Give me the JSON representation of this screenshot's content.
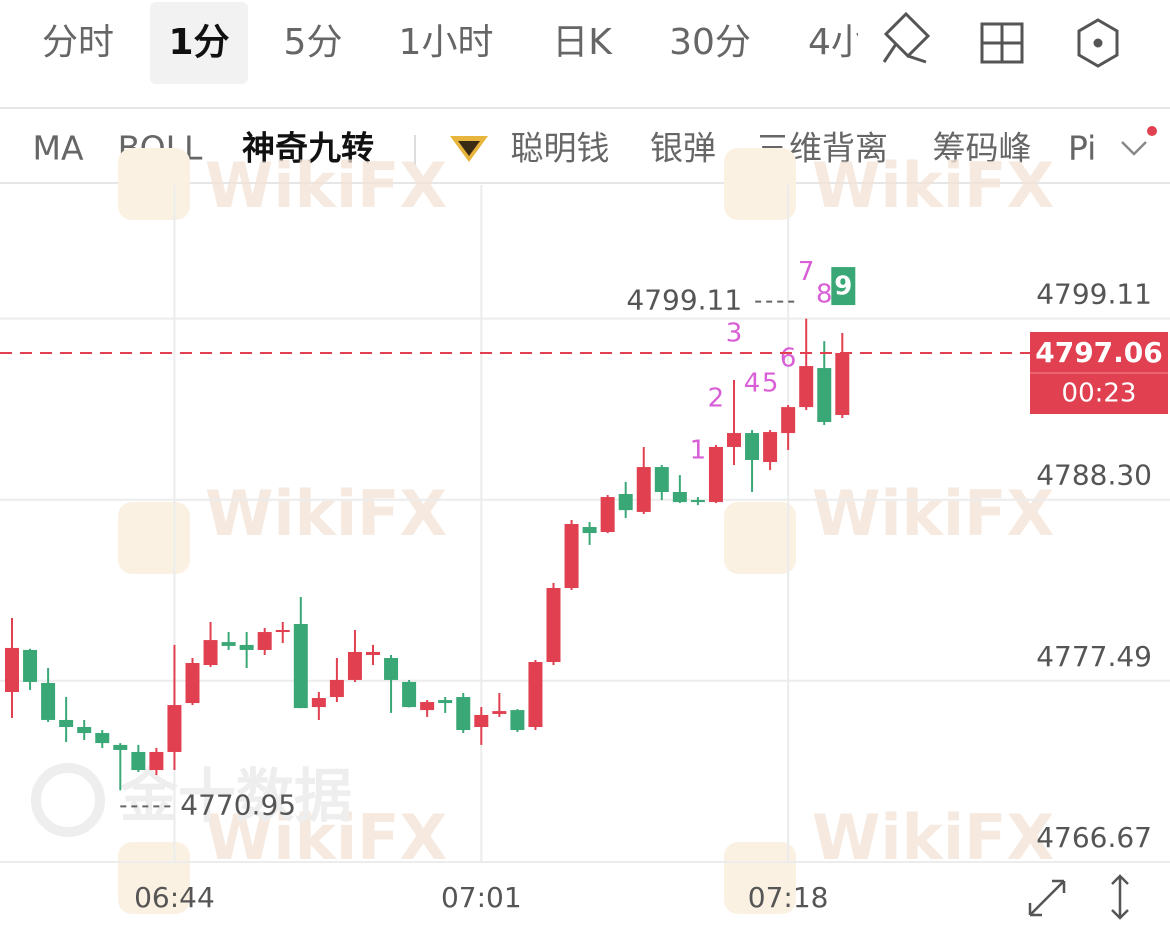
{
  "tabs": [
    "分时",
    "1分",
    "5分",
    "1小时",
    "日K",
    "30分",
    "4小"
  ],
  "indicators": [
    "MA",
    "BOLL",
    "神奇九转",
    "聪明钱",
    "银弹",
    "三维背离",
    "筹码峰",
    "Pi"
  ],
  "watermarks": [
    "WikiFX",
    "金十数据"
  ],
  "chart_data": {
    "type": "candlestick",
    "categories": [
      null,
      null,
      null,
      null,
      null,
      null,
      null,
      null,
      null,
      "06:44",
      null,
      null,
      null,
      null,
      null,
      null,
      null,
      null,
      null,
      null,
      null,
      null,
      null,
      null,
      null,
      null,
      "07:01",
      null,
      null,
      null,
      null,
      null,
      null,
      null,
      null,
      null,
      null,
      null,
      null,
      null,
      null,
      null,
      null,
      "07:18",
      null,
      null,
      null
    ],
    "open": [
      4776.82,
      4779.33,
      4777.36,
      4775.15,
      4774.73,
      4774.37,
      4773.66,
      4773.24,
      4772.16,
      4773.24,
      4776.16,
      4778.43,
      4779.8,
      4779.63,
      4779.33,
      4780.4,
      4780.88,
      4775.92,
      4776.52,
      4777.54,
      4779.03,
      4778.85,
      4777.42,
      4775.74,
      4776.34,
      4776.52,
      4774.73,
      4775.51,
      4775.74,
      4774.73,
      4778.61,
      4783.03,
      4786.67,
      4786.37,
      4788.64,
      4787.57,
      4790.25,
      4788.76,
      4788.28,
      4788.16,
      4791.45,
      4792.28,
      4790.55,
      4792.28,
      4793.83,
      4796.16,
      4793.36
    ],
    "high": [
      4781.24,
      4779.4,
      4778.25,
      4776.52,
      4775.15,
      4774.55,
      4773.77,
      4773.66,
      4773.48,
      4779.63,
      4778.85,
      4781.0,
      4780.4,
      4780.4,
      4780.64,
      4781.0,
      4782.49,
      4776.82,
      4778.85,
      4780.52,
      4779.63,
      4779.03,
      4777.54,
      4776.34,
      4776.52,
      4776.76,
      4775.92,
      4776.76,
      4775.8,
      4778.73,
      4783.33,
      4787.09,
      4786.97,
      4788.58,
      4789.36,
      4791.45,
      4790.37,
      4789.77,
      4788.46,
      4791.57,
      4795.45,
      4792.46,
      4792.46,
      4793.95,
      4799.11,
      4797.77,
      4798.25
    ],
    "low": [
      4775.27,
      4776.94,
      4775.03,
      4773.83,
      4773.95,
      4773.48,
      4770.95,
      4772.04,
      4771.86,
      4772.16,
      4776.04,
      4778.31,
      4779.33,
      4778.25,
      4779.03,
      4779.74,
      4775.86,
      4775.15,
      4776.22,
      4777.42,
      4778.43,
      4775.57,
      4775.9,
      4775.33,
      4775.57,
      4774.37,
      4773.66,
      4775.33,
      4774.43,
      4774.55,
      4778.43,
      4782.91,
      4785.6,
      4786.31,
      4787.21,
      4787.45,
      4788.28,
      4788.1,
      4787.98,
      4788.1,
      4790.37,
      4788.76,
      4790.07,
      4791.27,
      4793.66,
      4792.76,
      4793.18
    ],
    "close": [
      4779.45,
      4777.42,
      4775.15,
      4774.73,
      4774.37,
      4773.77,
      4773.36,
      4772.16,
      4773.24,
      4776.04,
      4778.55,
      4779.92,
      4779.57,
      4779.33,
      4780.4,
      4780.52,
      4775.86,
      4776.46,
      4777.54,
      4779.21,
      4779.21,
      4777.54,
      4775.92,
      4776.22,
      4776.16,
      4774.55,
      4775.45,
      4775.68,
      4774.55,
      4778.61,
      4783.03,
      4786.85,
      4786.31,
      4788.46,
      4787.68,
      4790.25,
      4788.76,
      4788.16,
      4788.16,
      4791.45,
      4792.28,
      4790.67,
      4792.34,
      4793.83,
      4796.28,
      4792.94,
      4797.06
    ],
    "up_color": "#e0404f",
    "down_color": "#3aa776",
    "td_sequence": [
      null,
      null,
      null,
      null,
      null,
      null,
      null,
      null,
      null,
      null,
      null,
      null,
      null,
      null,
      null,
      null,
      null,
      null,
      null,
      null,
      null,
      null,
      null,
      null,
      null,
      null,
      null,
      null,
      null,
      null,
      null,
      null,
      null,
      null,
      null,
      null,
      null,
      null,
      1,
      2,
      3,
      4,
      5,
      6,
      7,
      8,
      9
    ],
    "td_color": "#d95fd6",
    "ylim": [
      4766.67,
      4807.09
    ],
    "yticks": [
      4766.67,
      4777.49,
      {
        "value": 4788.3,
        "label": "4788.30"
      },
      4799.11
    ],
    "grid": true,
    "last_price": 4797.06,
    "countdown": "00:23",
    "high_marker": 4799.11,
    "low_marker": 4770.95
  }
}
